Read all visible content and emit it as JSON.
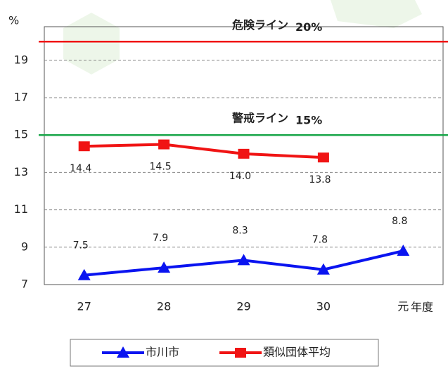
{
  "chart_data": {
    "type": "line",
    "y_label": "%",
    "x_label": "年度",
    "categories": [
      "27",
      "28",
      "29",
      "30",
      "元"
    ],
    "series": [
      {
        "name": "市川市",
        "color": "#0a14f0",
        "marker": "triangle",
        "values": [
          7.5,
          7.9,
          8.3,
          7.8,
          8.8
        ],
        "value_labels": [
          "7.5",
          "7.9",
          "8.3",
          "7.8",
          "8.8"
        ]
      },
      {
        "name": "類似団体平均",
        "color": "#f01414",
        "marker": "square",
        "values": [
          14.4,
          14.5,
          14.0,
          13.8,
          null
        ],
        "value_labels": [
          "14.4",
          "14.5",
          "14.0",
          "13.8",
          null
        ]
      }
    ],
    "ref_lines": [
      {
        "value": 20,
        "label": "危険ライン",
        "value_label": "20%",
        "color": "#f01414"
      },
      {
        "value": 15,
        "label": "警戒ライン",
        "value_label": "15%",
        "color": "#1aa64a"
      }
    ],
    "ylim": [
      7,
      20.8
    ],
    "yticks": [
      7,
      9,
      11,
      13,
      15,
      17,
      19
    ],
    "grid": true,
    "legend": "bottom"
  }
}
